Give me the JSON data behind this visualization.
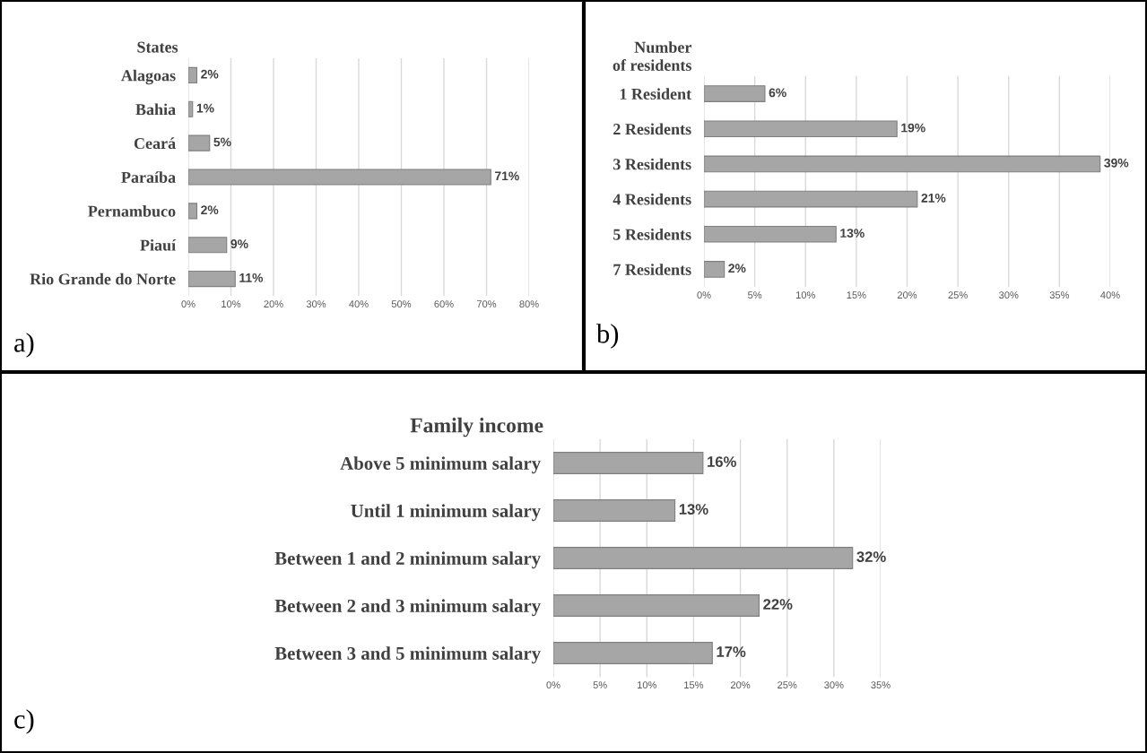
{
  "chart_data": [
    {
      "type": "bar",
      "orientation": "horizontal",
      "title": "States",
      "categories": [
        "Alagoas",
        "Bahia",
        "Ceará",
        "Paraíba",
        "Pernambuco",
        "Piauí",
        "Rio Grande do Norte"
      ],
      "values": [
        2,
        1,
        5,
        71,
        2,
        9,
        11
      ],
      "value_labels": [
        "2%",
        "1%",
        "5%",
        "71%",
        "2%",
        "9%",
        "11%"
      ],
      "color": "#a6a6a6",
      "xlim": [
        0,
        80
      ],
      "xticks": [
        {
          "value": 0,
          "label": "0%"
        },
        {
          "value": 10,
          "label": "10%"
        },
        {
          "value": 20,
          "label": "20%"
        },
        {
          "value": 30,
          "label": "30%"
        },
        {
          "value": 40,
          "label": "40%"
        },
        {
          "value": 50,
          "label": "50%"
        },
        {
          "value": 60,
          "label": "60%"
        },
        {
          "value": 70,
          "label": "70%"
        },
        {
          "value": 80,
          "label": "80%"
        }
      ],
      "grid": "x",
      "annotations": [
        "a)"
      ]
    },
    {
      "type": "bar",
      "orientation": "horizontal",
      "title": "Number\nof residents",
      "categories": [
        "1 Resident",
        "2 Residents",
        "3 Residents",
        "4 Residents",
        "5 Residents",
        "7 Residents"
      ],
      "values": [
        6,
        19,
        39,
        21,
        13,
        2
      ],
      "value_labels": [
        "6%",
        "19%",
        "39%",
        "21%",
        "13%",
        "2%"
      ],
      "color": "#a6a6a6",
      "xlim": [
        0,
        40
      ],
      "xticks": [
        {
          "value": 0,
          "label": "0%"
        },
        {
          "value": 5,
          "label": "5%"
        },
        {
          "value": 10,
          "label": "10%"
        },
        {
          "value": 15,
          "label": "15%"
        },
        {
          "value": 20,
          "label": "20%"
        },
        {
          "value": 25,
          "label": "25%"
        },
        {
          "value": 30,
          "label": "30%"
        },
        {
          "value": 35,
          "label": "35%"
        },
        {
          "value": 40,
          "label": "40%"
        }
      ],
      "grid": "x",
      "annotations": [
        "b)"
      ]
    },
    {
      "type": "bar",
      "orientation": "horizontal",
      "title": "Family income",
      "categories": [
        "Above 5 minimum salary",
        "Until 1 minimum salary",
        "Between 1 and 2 minimum salary",
        "Between 2 and 3 minimum salary",
        "Between 3 and 5 minimum salary"
      ],
      "values": [
        16,
        13,
        32,
        22,
        17
      ],
      "value_labels": [
        "16%",
        "13%",
        "32%",
        "22%",
        "17%"
      ],
      "color": "#a6a6a6",
      "xlim": [
        0,
        35
      ],
      "xticks": [
        {
          "value": 0,
          "label": "0%"
        },
        {
          "value": 5,
          "label": "5%"
        },
        {
          "value": 10,
          "label": "10%"
        },
        {
          "value": 15,
          "label": "15%"
        },
        {
          "value": 20,
          "label": "20%"
        },
        {
          "value": 25,
          "label": "25%"
        },
        {
          "value": 30,
          "label": "30%"
        },
        {
          "value": 35,
          "label": "35%"
        }
      ],
      "grid": "x",
      "annotations": [
        "c)"
      ]
    }
  ]
}
